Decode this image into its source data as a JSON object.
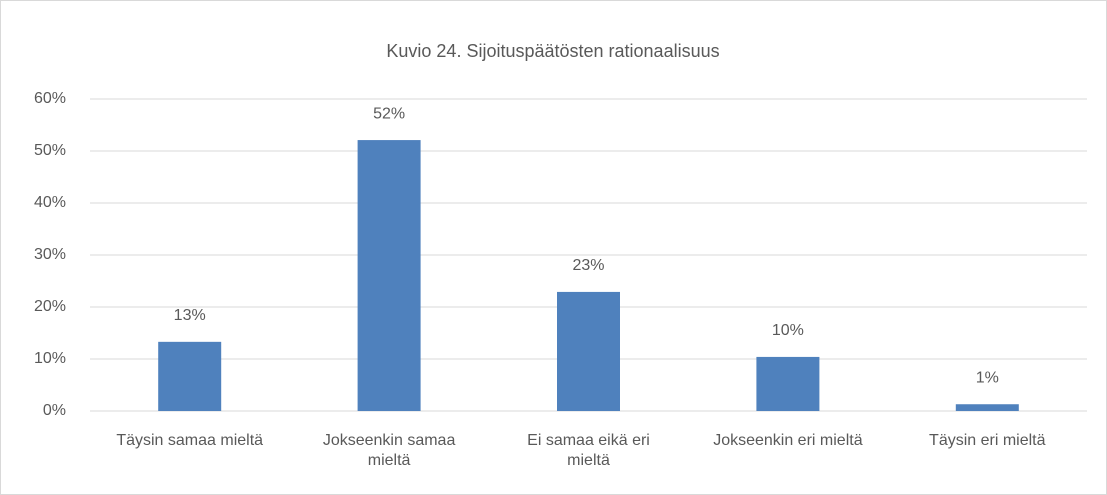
{
  "chart_data": {
    "type": "bar",
    "title": "Kuvio 24. Sijoituspäätösten rationaalisuus",
    "categories": [
      "Täysin samaa mieltä",
      "Jokseenkin samaa mieltä",
      "Ei samaa eikä eri mieltä",
      "Jokseenkin eri mieltä",
      "Täysin eri mieltä"
    ],
    "values": [
      13.3,
      52.1,
      22.9,
      10.4,
      1.3
    ],
    "value_labels": [
      "13%",
      "52%",
      "23%",
      "10%",
      "1%"
    ],
    "color": "#4f81bd",
    "ylim": [
      0,
      60
    ],
    "yticks": [
      {
        "value": 0,
        "label": "0%"
      },
      {
        "value": 10,
        "label": "10%"
      },
      {
        "value": 20,
        "label": "20%"
      },
      {
        "value": 30,
        "label": "30%"
      },
      {
        "value": 40,
        "label": "40%"
      },
      {
        "value": 50,
        "label": "50%"
      },
      {
        "value": 60,
        "label": "60%"
      }
    ],
    "grid": true
  }
}
